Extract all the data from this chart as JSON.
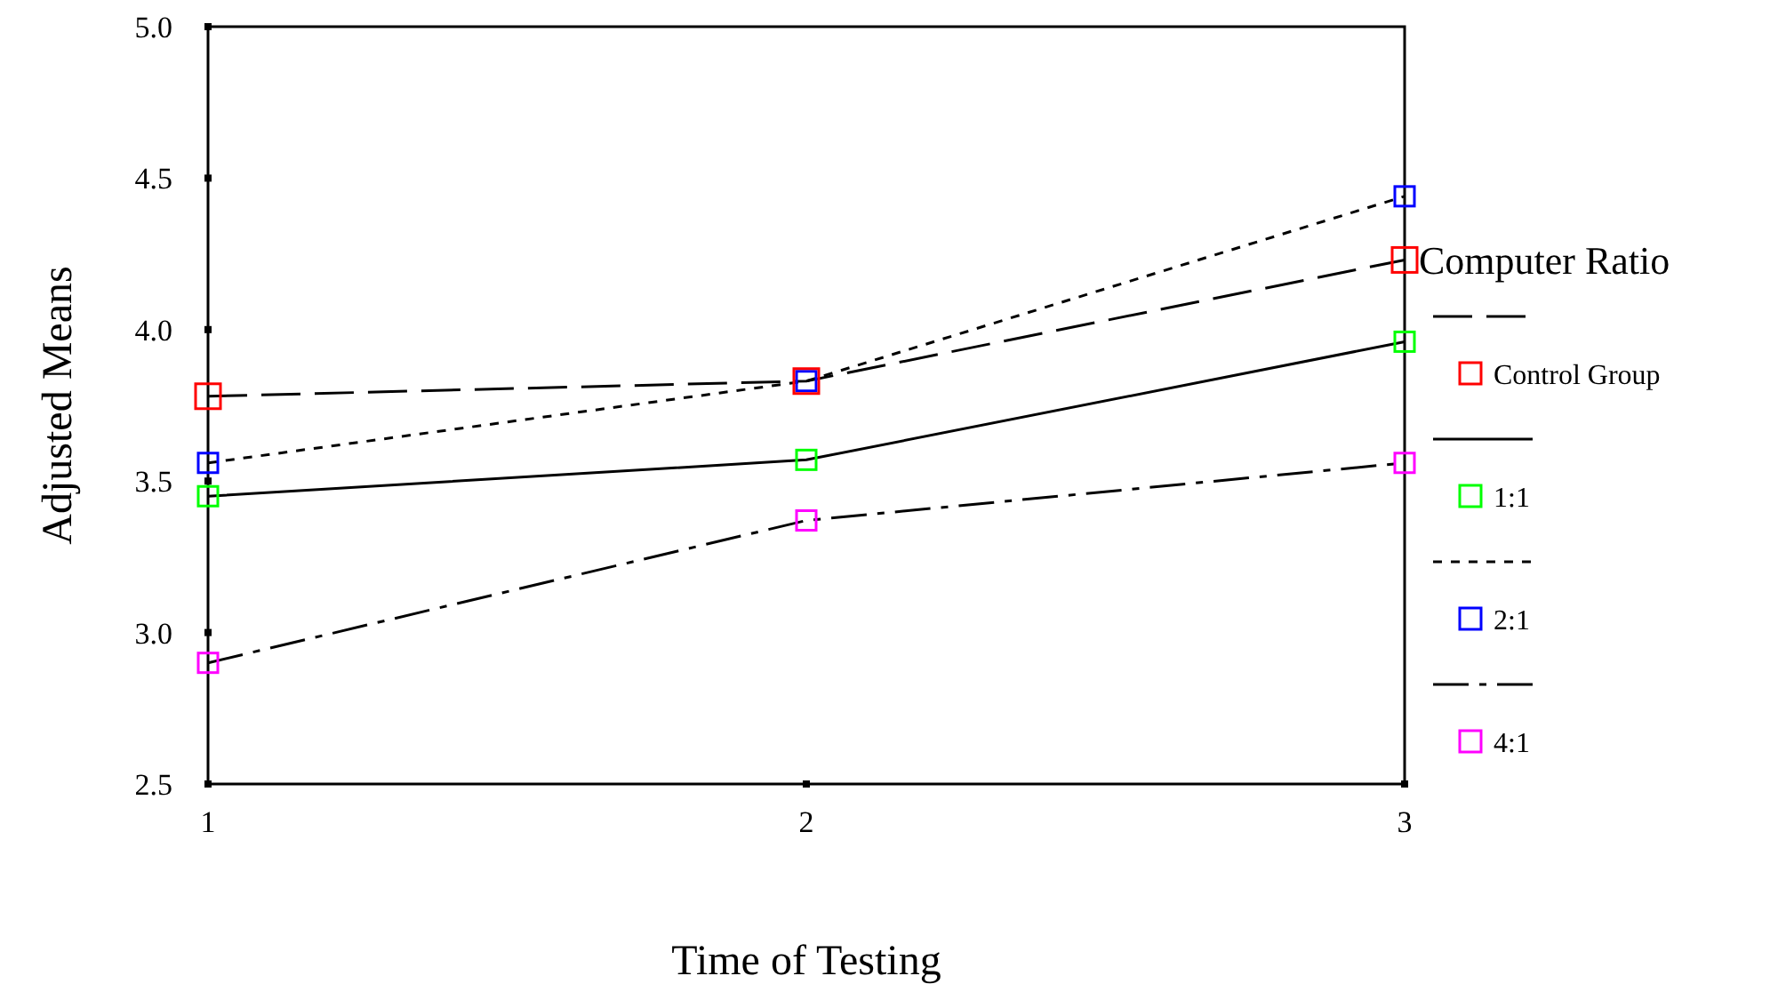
{
  "chart_data": {
    "type": "line",
    "xlabel": "Time of Testing",
    "ylabel": "Adjusted Means",
    "legend_title": "Computer Ratio",
    "legend": "right",
    "marker": "square",
    "grid": false,
    "x": [
      1,
      2,
      3
    ],
    "xlim": [
      1,
      3
    ],
    "xticks": [
      1,
      2,
      3
    ],
    "ylim": [
      2.5,
      5.0
    ],
    "yticks": [
      {
        "value": 2.5,
        "label": "2.5"
      },
      {
        "value": 3.0,
        "label": "3.0"
      },
      {
        "value": 3.5,
        "label": "3.5"
      },
      {
        "value": 4.0,
        "label": "4.0"
      },
      {
        "value": 4.5,
        "label": "4.5"
      },
      {
        "value": 5.0,
        "label": "5.0"
      }
    ],
    "series": [
      {
        "name": "Control Group",
        "color": "#ff0000",
        "line_style": "dashed",
        "values": [
          3.78,
          3.83,
          4.23
        ]
      },
      {
        "name": "1:1",
        "color": "#00ff00",
        "line_style": "solid",
        "values": [
          3.45,
          3.57,
          3.96
        ]
      },
      {
        "name": "2:1",
        "color": "#0000ff",
        "line_style": "dotted",
        "values": [
          3.56,
          3.83,
          4.44
        ]
      },
      {
        "name": "4:1",
        "color": "#ff00ff",
        "line_style": "dashdot",
        "values": [
          2.9,
          3.37,
          3.56
        ]
      }
    ]
  }
}
